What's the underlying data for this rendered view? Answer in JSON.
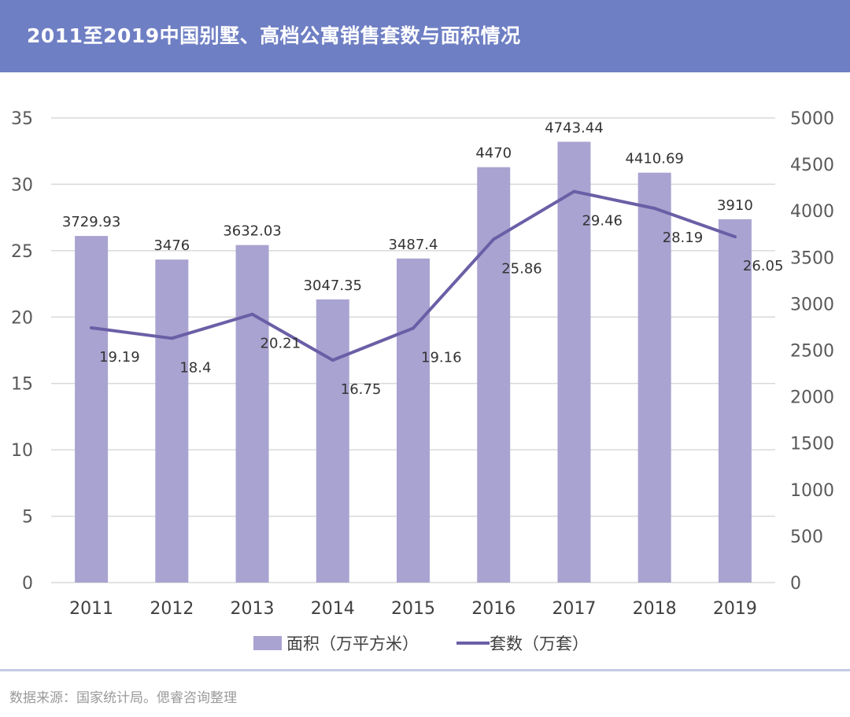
{
  "header": {
    "title": "2011至2019中国别墅、高档公寓销售套数与面积情况"
  },
  "footer": {
    "source": "数据来源：国家统计局。偲睿咨询整理"
  },
  "colors": {
    "header_bg": "#6f7fc4",
    "bar": "#a9a3d1",
    "line": "#6a5fa6",
    "grid": "#d9d9d9"
  },
  "chart_data": {
    "type": "bar+line",
    "categories": [
      "2011",
      "2012",
      "2013",
      "2014",
      "2015",
      "2016",
      "2017",
      "2018",
      "2019"
    ],
    "series": [
      {
        "name": "面积（万平方米）",
        "type": "bar",
        "axis": "right",
        "values": [
          3729.93,
          3476,
          3632.03,
          3047.35,
          3487.4,
          4470,
          4743.44,
          4410.69,
          3910
        ],
        "labels": [
          "3729.93",
          "3476",
          "3632.03",
          "3047.35",
          "3487.4",
          "4470",
          "4743.44",
          "4410.69",
          "3910"
        ]
      },
      {
        "name": "套数（万套）",
        "type": "line",
        "axis": "left",
        "values": [
          19.19,
          18.4,
          20.21,
          16.75,
          19.16,
          25.86,
          29.46,
          28.19,
          26.05
        ],
        "labels": [
          "19.19",
          "18.4",
          "20.21",
          "16.75",
          "19.16",
          "25.86",
          "29.46",
          "28.19",
          "26.05"
        ]
      }
    ],
    "left_axis": {
      "ylim": [
        0,
        35
      ],
      "ticks": [
        "0",
        "5",
        "10",
        "15",
        "20",
        "25",
        "30",
        "35"
      ]
    },
    "right_axis": {
      "ylim": [
        0,
        5000
      ],
      "ticks": [
        "0",
        "500",
        "1000",
        "1500",
        "2000",
        "2500",
        "3000",
        "3500",
        "4000",
        "4500",
        "5000"
      ]
    },
    "legend": {
      "position": "bottom",
      "items": [
        "面积（万平方米）",
        "套数（万套）"
      ]
    }
  }
}
